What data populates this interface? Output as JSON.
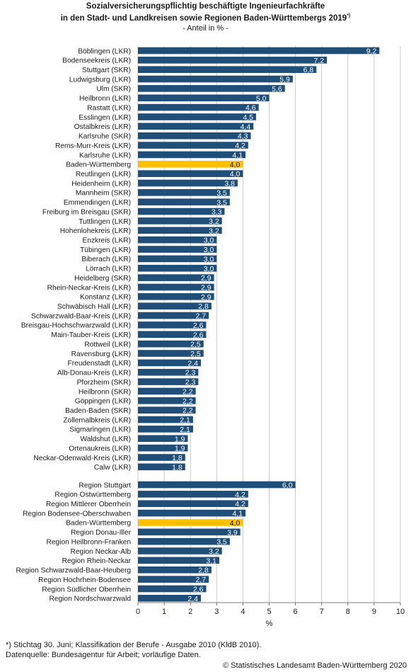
{
  "header": {
    "title_line1": "Sozialversicherungspflichtig beschäftigte Ingenieurfachkräfte",
    "title_line2": "in den Stadt- und Landkreisen sowie Regionen Baden-Württembergs 2019",
    "title_mark": "*)",
    "subtitle": "- Anteil in % -"
  },
  "chart_data": {
    "type": "bar",
    "orientation": "horizontal",
    "xlabel": "%",
    "xlim": [
      0,
      10
    ],
    "xticks": [
      "0",
      "1",
      "2",
      "3",
      "4",
      "5",
      "6",
      "7",
      "8",
      "9",
      "10"
    ],
    "grid": true,
    "colors": {
      "bar": "#1f4e79",
      "highlight": "#ffc000",
      "grid": "#bfbfbf"
    },
    "groups": [
      {
        "categories": [
          "Böblingen (LKR)",
          "Bodenseekreis (LKR)",
          "Stuttgart (SKR)",
          "Ludwigsburg (LKR)",
          "Ulm (SKR)",
          "Heilbronn (LKR)",
          "Rastatt (LKR)",
          "Esslingen (LKR)",
          "Ostalbkreis (LKR)",
          "Karlsruhe (SKR)",
          "Rems-Murr-Kreis (LKR)",
          "Karlsruhe (LKR)",
          "Baden-Württemberg",
          "Reutlingen (LKR)",
          "Heidenheim (LKR)",
          "Mannheim (SKR)",
          "Emmendingen (LKR)",
          "Freiburg im Breisgau (SKR)",
          "Tuttlingen (LKR)",
          "Hohenlohekreis (LKR)",
          "Enzkreis (LKR)",
          "Tübingen (LKR)",
          "Biberach (LKR)",
          "Lörrach (LKR)",
          "Heidelberg (SKR)",
          "Rhein-Neckar-Kreis (LKR)",
          "Konstanz (LKR)",
          "Schwäbisch Hall (LKR)",
          "Schwarzwald-Baar-Kreis  (LKR)",
          "Breisgau-Hochschwarzwald (LKR)",
          "Main-Tauber-Kreis (LKR)",
          "Rottweil (LKR)",
          "Ravensburg (LKR)",
          "Freudenstadt (LKR)",
          "Alb-Donau-Kreis (LKR)",
          "Pforzheim (SKR)",
          "Heilbronn (SKR)",
          "Göppingen (LKR)",
          "Baden-Baden (SKR)",
          "Zollernalbkreis (LKR)",
          "Sigmaringen (LKR)",
          "Waldshut (LKR)",
          "Ortenaukreis (LKR)",
          "Neckar-Odenwald-Kreis (LKR)",
          "Calw (LKR)"
        ],
        "values": [
          9.2,
          7.2,
          6.8,
          5.9,
          5.6,
          5.0,
          4.6,
          4.5,
          4.4,
          4.3,
          4.2,
          4.1,
          4.0,
          4.0,
          3.8,
          3.5,
          3.5,
          3.3,
          3.2,
          3.2,
          3.0,
          3.0,
          3.0,
          3.0,
          2.9,
          2.9,
          2.9,
          2.8,
          2.7,
          2.6,
          2.6,
          2.5,
          2.5,
          2.4,
          2.3,
          2.3,
          2.2,
          2.2,
          2.2,
          2.1,
          2.1,
          1.9,
          1.9,
          1.8,
          1.8
        ],
        "labels": [
          "9,2",
          "7,2",
          "6,8",
          "5,9",
          "5,6",
          "5,0",
          "4,6",
          "4,5",
          "4,4",
          "4,3",
          "4,2",
          "4,1",
          "4,0",
          "4,0",
          "3,8",
          "3,5",
          "3,5",
          "3,3",
          "3,2",
          "3,2",
          "3,0",
          "3,0",
          "3,0",
          "3,0",
          "2,9",
          "2,9",
          "2,9",
          "2,8",
          "2,7",
          "2,6",
          "2,6",
          "2,5",
          "2,5",
          "2,4",
          "2,3",
          "2,3",
          "2,2",
          "2,2",
          "2,2",
          "2,1",
          "2,1",
          "1,9",
          "1,9",
          "1,8",
          "1,8"
        ],
        "highlight": "Baden-Württemberg"
      },
      {
        "categories": [
          "Region Stuttgart",
          "Region Ostwürttemberg",
          "Region Mittlerer Oberrhein",
          "Region Bodensee-Oberschwaben",
          "Baden-Württemberg",
          "Region Donau-Iller",
          "Region Heilbronn-Franken",
          "Region Neckar-Alb",
          "Region Rhein-Neckar",
          "Region Schwarzwald-Baar-Heuberg",
          "Region Hochrhein-Bodensee",
          "Region Südlicher Oberrhein",
          "Region Nordschwarzwald"
        ],
        "values": [
          6.0,
          4.2,
          4.2,
          4.1,
          4.0,
          3.9,
          3.5,
          3.2,
          3.1,
          2.8,
          2.7,
          2.6,
          2.4
        ],
        "labels": [
          "6,0",
          "4,2",
          "4,2",
          "4,1",
          "4,0",
          "3,9",
          "3,5",
          "3,2",
          "3,1",
          "2,8",
          "2,7",
          "2,6",
          "2,4"
        ],
        "highlight": "Baden-Württemberg"
      }
    ]
  },
  "footer": {
    "note_line1": "*) Stichtag 30. Juni; Klassifikation der Berufe - Ausgabe 2010 (KldB 2010).",
    "note_line2": "Datenquelle: Bundesagentur für Arbeit; vorläufige Daten.",
    "copyright": "© Statistisches Landesamt Baden-Württemberg 2020"
  }
}
